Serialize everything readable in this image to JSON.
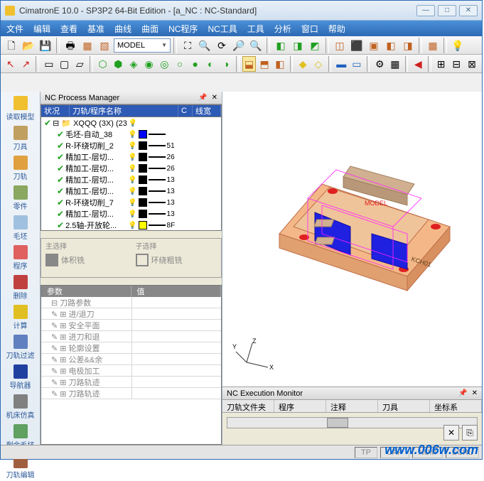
{
  "title": "CimatronE 10.0 - SP3P2 64-Bit Edition - [a_NC : NC-Standard]",
  "menus": [
    "文件",
    "编辑",
    "查看",
    "基准",
    "曲线",
    "曲面",
    "NC程序",
    "NC工具",
    "工具",
    "分析",
    "窗口",
    "帮助"
  ],
  "model_dropdown": "MODEL",
  "leftbar": [
    {
      "label": "读取模型",
      "color": "#f0c030"
    },
    {
      "label": "刀具",
      "color": "#c0a060"
    },
    {
      "label": "刀轨",
      "color": "#e0a040"
    },
    {
      "label": "零件",
      "color": "#8aa860"
    },
    {
      "label": "毛坯",
      "color": "#a0c0e0"
    },
    {
      "label": "程序",
      "color": "#e06060"
    },
    {
      "label": "删除",
      "color": "#c04040"
    },
    {
      "label": "计算",
      "color": "#e0c020"
    },
    {
      "label": "刀轨过滤",
      "color": "#6080c0"
    },
    {
      "label": "导航器",
      "color": "#2040a0"
    },
    {
      "label": "机床仿真",
      "color": "#808080"
    },
    {
      "label": "剩余毛坯",
      "color": "#60a060"
    },
    {
      "label": "刀轨编辑",
      "color": "#a06040"
    }
  ],
  "nc_panel_title": "NC Process Manager",
  "tree_headers": {
    "c1": "状况",
    "c2": "刀轨/程序名称",
    "c3": "C",
    "c4": "线宽"
  },
  "tree_root": "XQQQ (3X) (23",
  "tree_rows": [
    {
      "name": "毛坯-自动_38",
      "color": "#0000ff",
      "lw": ""
    },
    {
      "name": "R-环绕切削_2",
      "color": "#000000",
      "lw": "51"
    },
    {
      "name": "精加工-层切...",
      "color": "#000000",
      "lw": "26"
    },
    {
      "name": "精加工-层切...",
      "color": "#000000",
      "lw": "26"
    },
    {
      "name": "精加工-层切...",
      "color": "#000000",
      "lw": "13"
    },
    {
      "name": "精加工-层切...",
      "color": "#000000",
      "lw": "13"
    },
    {
      "name": "R-环绕切削_7",
      "color": "#000000",
      "lw": "13"
    },
    {
      "name": "精加工-层切...",
      "color": "#000000",
      "lw": "13"
    },
    {
      "name": "2.5轴-开放轮...",
      "color": "#ffff00",
      "lw": "8F"
    }
  ],
  "sel_main_label": "主选择",
  "sel_main_val": "体积铣",
  "sel_sub_label": "子选择",
  "sel_sub_val": "环绕粗铣",
  "param_head1": "参数",
  "param_head2": "值",
  "param_rows": [
    "刀路参数",
    "进/退刀",
    "安全平面",
    "进刀和退",
    "轮廓设置",
    "公差&&余",
    "电极加工",
    "刀路轨迹",
    "刀路轨迹"
  ],
  "exec_title": "NC Execution Monitor",
  "exec_cols": [
    "刀轨文件夹",
    "程序",
    "注释",
    "刀具",
    "坐标系"
  ],
  "status": {
    "tp": "TP",
    "cap": "CAP",
    "num": "NUM",
    "scrl": "SCRL"
  },
  "axis": {
    "x": "X",
    "y": "Y",
    "z": "Z"
  },
  "model_label": "MODEL",
  "part_label": "KCH01",
  "watermark": "www.006w.com",
  "colors": {
    "part_base": "#f4b888",
    "part_edge": "#c0704a",
    "pockets": "#2020e0",
    "top_slab": "#d0b090",
    "holes": "#e02020",
    "wire": "#ff20ff",
    "bg": "#ffffff"
  }
}
